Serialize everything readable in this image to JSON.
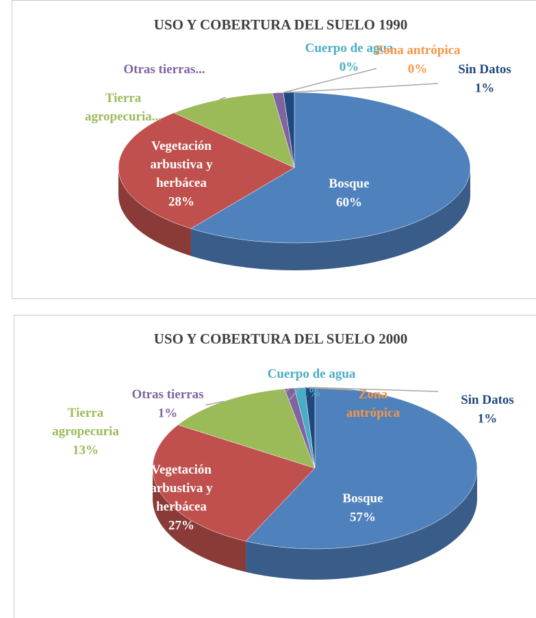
{
  "chart_data": [
    {
      "type": "pie3d",
      "title": "USO Y COBERTURA DEL SUELO 1990",
      "categories": [
        "Bosque",
        "Vegetación arbustiva y herbácea",
        "Tierra agropecuria...",
        "Otras tierras...",
        "Cuerpo de agua",
        "Zona antrópica",
        "Sin Datos"
      ],
      "values": [
        60,
        28,
        10,
        1,
        0,
        0,
        1
      ],
      "value_labels": [
        "60%",
        "28%",
        null,
        null,
        "0%",
        "0%",
        "1%"
      ],
      "colors": [
        "#4f81bd",
        "#c0504d",
        "#9bbb59",
        "#8064a2",
        "#4bacc6",
        "#f79646",
        "#1f497d"
      ]
    },
    {
      "type": "pie3d",
      "title": "USO Y COBERTURA DEL SUELO 2000",
      "categories": [
        "Bosque",
        "Vegetación arbustiva y herbácea",
        "Tierra agropecuria",
        "Otras tierras",
        "Cuerpo de agua",
        "Zona antrópica",
        "Sin Datos"
      ],
      "values": [
        57,
        27,
        13,
        1,
        1,
        0,
        1
      ],
      "value_labels": [
        "57%",
        "27%",
        "13%",
        "1%",
        "1%",
        null,
        "1%"
      ],
      "colors": [
        "#4f81bd",
        "#c0504d",
        "#9bbb59",
        "#8064a2",
        "#4bacc6",
        "#f79646",
        "#1f497d"
      ]
    }
  ]
}
